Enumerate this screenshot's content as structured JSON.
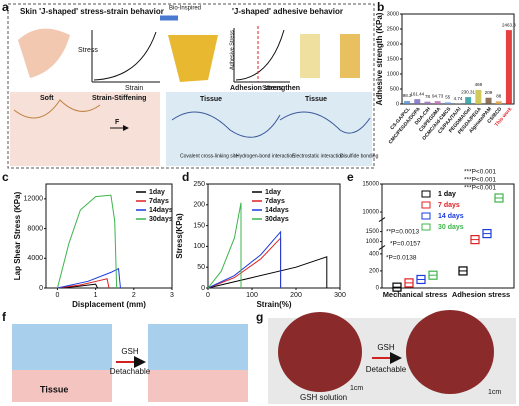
{
  "panel_labels": [
    "a",
    "b",
    "c",
    "d",
    "e",
    "f",
    "g"
  ],
  "panel_a": {
    "title_left": "Skin 'J-shaped' stress-strain behavior",
    "arrow": "Bio-Inspired",
    "title_right": "'J-shaped' adhesive behavior",
    "axis_stress": "Stress",
    "axis_strain": "Strain",
    "axis_adhesive": "Adhesive Stress",
    "axis_stress2": "Stress",
    "soft": "Soft",
    "stiffening": "Strain-Stiffening",
    "force": "F",
    "strengthen": "Adhesion strengthen",
    "tissue": [
      "Tissue",
      "Tissue"
    ],
    "legend": [
      "Covalent cross-linking site",
      "Hydrogen-bond interaction",
      "Electrostatic interaction",
      "Disulfide bonding"
    ]
  },
  "chart_data": [
    {
      "type": "bar",
      "ylabel": "Adhesive strength (KPa)",
      "categories": [
        "CS-GA/PCL",
        "CMC/PEGDA/DOPA",
        "DDA-CIH",
        "CS/PEGDMA",
        "OCMC/Ald-CMCS",
        "CS/PAA/TA/Al",
        "PEGDMA/Gel",
        "PEGDA/PEGA",
        "Alginate/PAM",
        "CS/BCD",
        "This work"
      ],
      "values": [
        98.3,
        161.44,
        78,
        94.73,
        55,
        4.74,
        230.31,
        469,
        209,
        88,
        2463.3
      ],
      "colors": [
        "#5a8fd0",
        "#7b6cc4",
        "#9a6cc0",
        "#b86cb8",
        "#6a9ae0",
        "#8ac4d8",
        "#2a9aa0",
        "#c8c040",
        "#7a5a40",
        "#e0a040",
        "#e02020"
      ],
      "ylim": [
        0,
        3000
      ],
      "yticks": [
        0,
        500,
        1000,
        1500,
        2000,
        2500,
        3000
      ]
    },
    {
      "type": "line",
      "xlabel": "Displacement (mm)",
      "ylabel": "Lap Shear Stress (KPa)",
      "xlim": [
        -0.3,
        3
      ],
      "xticks": [
        0,
        1,
        2,
        3
      ],
      "ylim": [
        0,
        14000
      ],
      "yticks": [
        0,
        4000,
        8000,
        12000
      ],
      "legend": "upper right",
      "series": [
        {
          "name": "1day",
          "color": "#000000",
          "x": [
            0,
            0.5,
            0.9,
            1.0,
            1.05
          ],
          "values": [
            0,
            200,
            450,
            520,
            0
          ]
        },
        {
          "name": "7days",
          "color": "#e02020",
          "x": [
            0,
            0.6,
            1.1,
            1.3,
            1.35
          ],
          "values": [
            0,
            400,
            1000,
            1250,
            0
          ]
        },
        {
          "name": "14days",
          "color": "#1a3adc",
          "x": [
            0,
            0.8,
            1.4,
            1.6,
            1.65
          ],
          "values": [
            0,
            900,
            2100,
            2600,
            0
          ]
        },
        {
          "name": "30days",
          "color": "#3cb44b",
          "x": [
            0,
            0.3,
            0.6,
            1.0,
            1.4,
            1.5,
            1.55
          ],
          "values": [
            0,
            6000,
            10500,
            12300,
            12500,
            9000,
            0
          ]
        }
      ]
    },
    {
      "type": "line",
      "xlabel": "Strain(%)",
      "ylabel": "Stress(KPa)",
      "xlim": [
        0,
        300
      ],
      "xticks": [
        0,
        100,
        200,
        300
      ],
      "ylim": [
        0,
        250
      ],
      "yticks": [
        0,
        50,
        100,
        150,
        200,
        250
      ],
      "legend": "upper left",
      "series": [
        {
          "name": "1day",
          "color": "#000000",
          "x": [
            0,
            100,
            200,
            270,
            270
          ],
          "values": [
            0,
            25,
            50,
            75,
            0
          ]
        },
        {
          "name": "7days",
          "color": "#e02020",
          "x": [
            0,
            60,
            120,
            165,
            165
          ],
          "values": [
            0,
            25,
            70,
            120,
            0
          ]
        },
        {
          "name": "14days",
          "color": "#1a3adc",
          "x": [
            0,
            60,
            120,
            165,
            165
          ],
          "values": [
            0,
            30,
            80,
            135,
            0
          ]
        },
        {
          "name": "30days",
          "color": "#3cb44b",
          "x": [
            0,
            30,
            60,
            75,
            75
          ],
          "values": [
            0,
            40,
            120,
            205,
            0
          ]
        }
      ]
    },
    {
      "type": "box",
      "categories": [
        "Mechanical stress",
        "Adhesion stress"
      ],
      "ylim_segments": [
        [
          0,
          450
        ],
        [
          800,
          2000
        ],
        [
          9000,
          15000
        ]
      ],
      "yticks": [
        0,
        200,
        400,
        1000,
        1500,
        10000,
        15000
      ],
      "series": [
        {
          "name": "1 day",
          "color": "#000000",
          "values": [
            10,
            200
          ]
        },
        {
          "name": "7 days",
          "color": "#e02020",
          "values": [
            60,
            1100
          ]
        },
        {
          "name": "14 days",
          "color": "#1a3adc",
          "values": [
            100,
            1400
          ]
        },
        {
          "name": "30 days",
          "color": "#3cb44b",
          "values": [
            150,
            12500
          ]
        }
      ],
      "annotations": [
        "*P=0.0138",
        "*P=0.0157",
        "**P=0.0013",
        "***P<0.001",
        "***P<0.001",
        "***P<0.001"
      ]
    }
  ],
  "panel_f": {
    "tissue": "Tissue",
    "agent": "GSH",
    "result": "Detachable"
  },
  "panel_g": {
    "agent": "GSH",
    "result": "Detachable",
    "solution": "GSH solution",
    "scale": [
      "1cm",
      "1cm"
    ]
  }
}
